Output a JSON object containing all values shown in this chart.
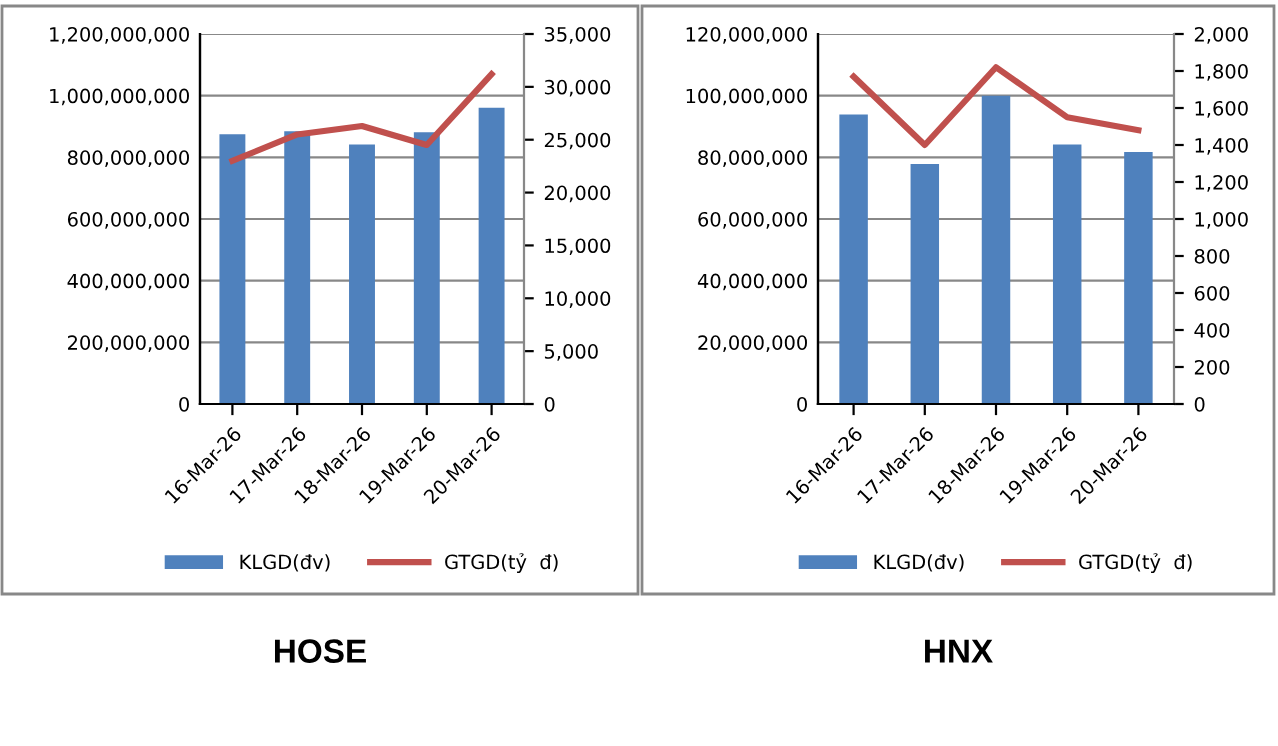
{
  "chart_data": [
    {
      "type": "bar",
      "title": "HOSE",
      "categories": [
        "16-Mar-26",
        "17-Mar-26",
        "18-Mar-26",
        "19-Mar-26",
        "20-Mar-26"
      ],
      "series": [
        {
          "name": "KLGD(đv)",
          "color": "#4f81bd",
          "values": [
            875000000,
            885000000,
            842000000,
            881000000,
            961000000
          ]
        },
        {
          "name": "GTGD(tỷ  đ)",
          "type": "line",
          "axis": "y2",
          "color": "#c0504d",
          "values": [
            23000,
            25500,
            26300,
            24500,
            31200
          ]
        }
      ],
      "ylim": [
        0,
        1200000000
      ],
      "yticks": [
        {
          "value": 0,
          "label": "0"
        },
        {
          "value": 200000000,
          "label": "200,000,000"
        },
        {
          "value": 400000000,
          "label": "400,000,000"
        },
        {
          "value": 600000000,
          "label": "600,000,000"
        },
        {
          "value": 800000000,
          "label": "800,000,000"
        },
        {
          "value": 1000000000,
          "label": "1,000,000,000"
        },
        {
          "value": 1200000000,
          "label": "1,200,000,000"
        }
      ],
      "y2lim": [
        0,
        35000
      ],
      "y2ticks": [
        {
          "value": 0,
          "label": "0"
        },
        {
          "value": 5000,
          "label": "5,000"
        },
        {
          "value": 10000,
          "label": "10,000"
        },
        {
          "value": 15000,
          "label": "15,000"
        },
        {
          "value": 20000,
          "label": "20,000"
        },
        {
          "value": 25000,
          "label": "25,000"
        },
        {
          "value": 30000,
          "label": "30,000"
        },
        {
          "value": 35000,
          "label": "35,000"
        }
      ],
      "grid": "y",
      "legend": "bottom",
      "marker": "none",
      "line_style": "solid"
    },
    {
      "type": "bar",
      "title": "HNX",
      "categories": [
        "16-Mar-26",
        "17-Mar-26",
        "18-Mar-26",
        "19-Mar-26",
        "20-Mar-26"
      ],
      "series": [
        {
          "name": "KLGD(đv)",
          "color": "#4f81bd",
          "values": [
            93900000,
            77800000,
            100000000,
            84200000,
            81700000
          ]
        },
        {
          "name": "GTGD(tỷ  đ)",
          "type": "line",
          "axis": "y2",
          "color": "#c0504d",
          "values": [
            1770,
            1400,
            1820,
            1550,
            1480
          ]
        }
      ],
      "ylim": [
        0,
        120000000
      ],
      "yticks": [
        {
          "value": 0,
          "label": "0"
        },
        {
          "value": 20000000,
          "label": "20,000,000"
        },
        {
          "value": 40000000,
          "label": "40,000,000"
        },
        {
          "value": 60000000,
          "label": "60,000,000"
        },
        {
          "value": 80000000,
          "label": "80,000,000"
        },
        {
          "value": 100000000,
          "label": "100,000,000"
        },
        {
          "value": 120000000,
          "label": "120,000,000"
        }
      ],
      "y2lim": [
        0,
        2000
      ],
      "y2ticks": [
        {
          "value": 0,
          "label": "0"
        },
        {
          "value": 200,
          "label": "200"
        },
        {
          "value": 400,
          "label": "400"
        },
        {
          "value": 600,
          "label": "600"
        },
        {
          "value": 800,
          "label": "800"
        },
        {
          "value": 1000,
          "label": "1,000"
        },
        {
          "value": 1200,
          "label": "1,200"
        },
        {
          "value": 1400,
          "label": "1,400"
        },
        {
          "value": 1600,
          "label": "1,600"
        },
        {
          "value": 1800,
          "label": "1,800"
        },
        {
          "value": 2000,
          "label": "2,000"
        }
      ],
      "grid": "y",
      "legend": "bottom",
      "marker": "none",
      "line_style": "solid"
    }
  ]
}
